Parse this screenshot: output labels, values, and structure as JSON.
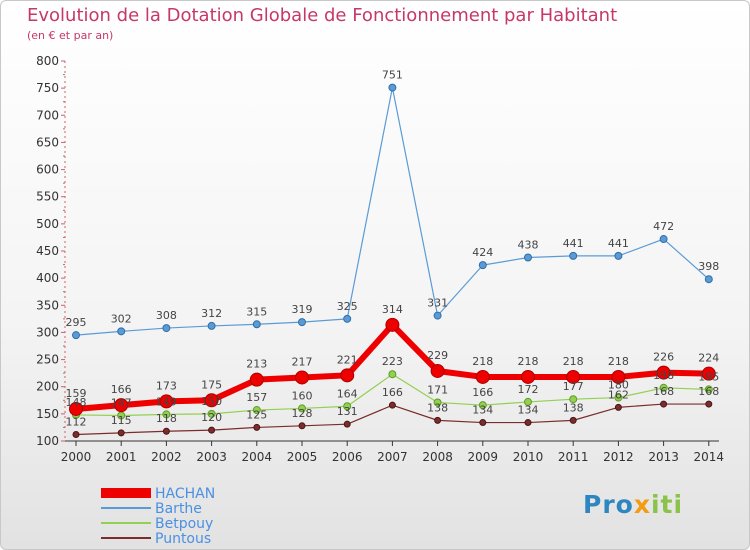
{
  "title": "Evolution de la Dotation Globale de Fonctionnement par Habitant",
  "subtitle": "(en € et par an)",
  "brand": {
    "part1": "Pro",
    "part2": "x",
    "part3": "iti"
  },
  "colors": {
    "HACHAN": "#ee0000",
    "Barthe": "#5b9bd5",
    "Betpouy": "#92d050",
    "Puntous": "#7b2c2c",
    "title": "#c6376b",
    "legend_text": "#4a90e2"
  },
  "chart_data": {
    "type": "line",
    "title": "Evolution de la Dotation Globale de Fonctionnement par Habitant",
    "subtitle": "(en € et par an)",
    "x": [
      "2000",
      "2001",
      "2002",
      "2003",
      "2004",
      "2005",
      "2006",
      "2007",
      "2008",
      "2009",
      "2010",
      "2011",
      "2012",
      "2013",
      "2014"
    ],
    "ylim": [
      100,
      800
    ],
    "yticks": [
      100,
      150,
      200,
      250,
      300,
      350,
      400,
      450,
      500,
      550,
      600,
      650,
      700,
      750,
      800
    ],
    "grid": false,
    "legend_position": "bottom-left",
    "series": [
      {
        "name": "HACHAN",
        "values": [
          159,
          166,
          173,
          175,
          213,
          217,
          221,
          314,
          229,
          218,
          218,
          218,
          218,
          226,
          224
        ]
      },
      {
        "name": "Barthe",
        "values": [
          295,
          302,
          308,
          312,
          315,
          319,
          325,
          751,
          331,
          424,
          438,
          441,
          441,
          472,
          398
        ]
      },
      {
        "name": "Betpouy",
        "values": [
          148,
          147,
          149,
          150,
          157,
          160,
          164,
          223,
          171,
          166,
          172,
          177,
          180,
          198,
          195
        ]
      },
      {
        "name": "Puntous",
        "values": [
          112,
          115,
          118,
          120,
          125,
          128,
          131,
          166,
          138,
          134,
          134,
          138,
          162,
          168,
          168
        ]
      }
    ]
  }
}
